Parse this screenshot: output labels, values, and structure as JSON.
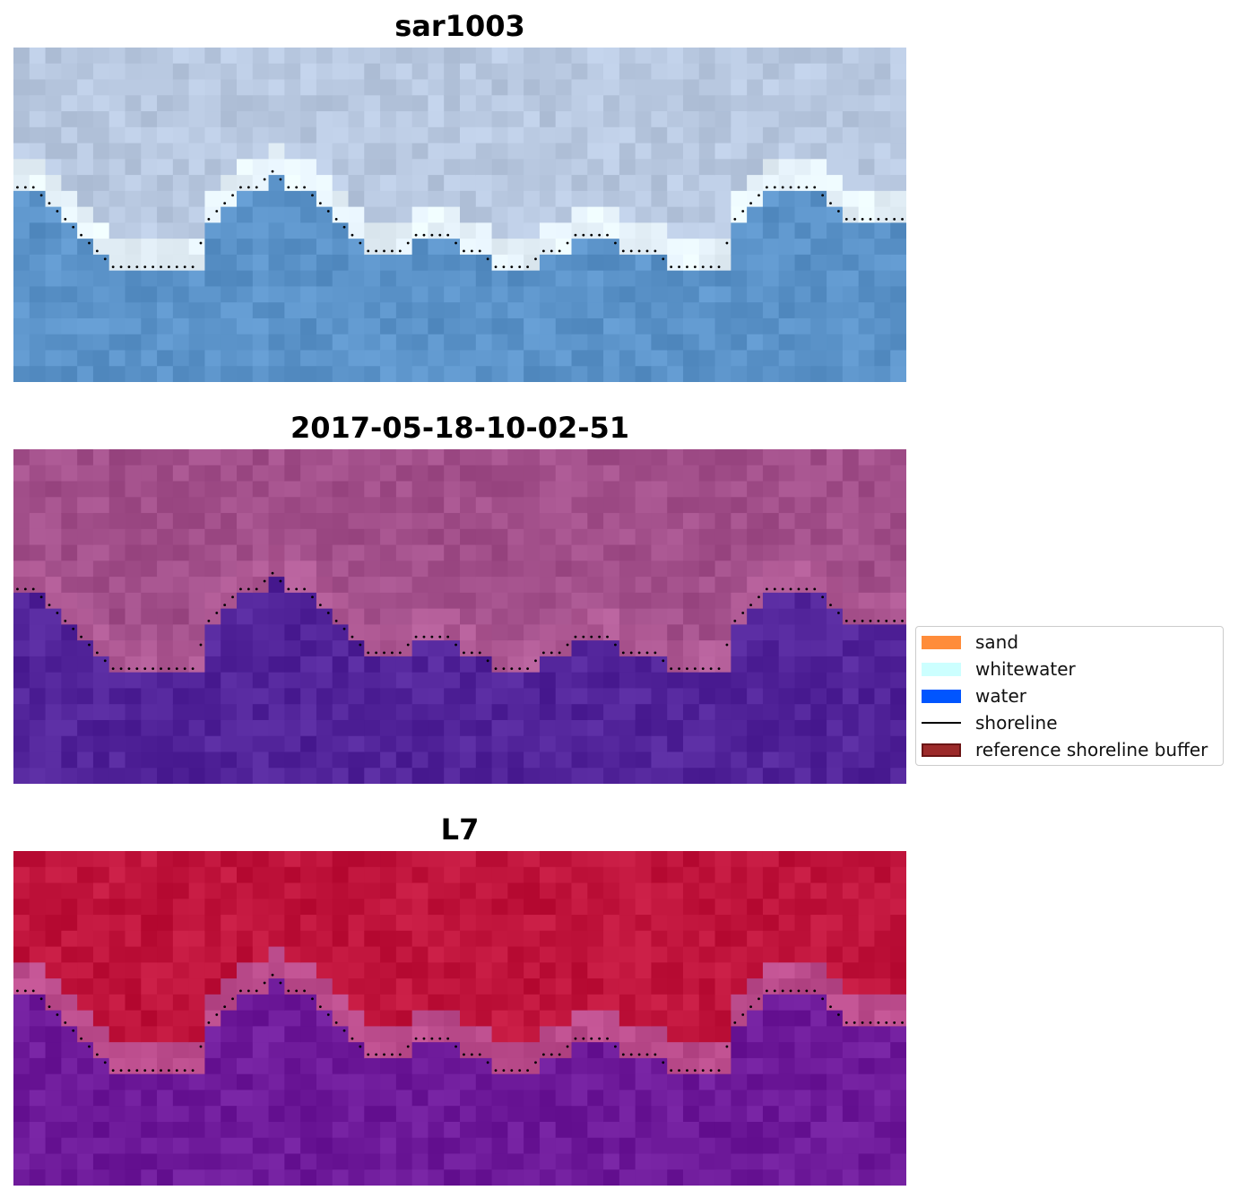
{
  "panels": [
    {
      "title": "sar1003"
    },
    {
      "title": "2017-05-18-10-02-51"
    },
    {
      "title": "L7"
    }
  ],
  "legend": {
    "items": [
      {
        "label": "sand",
        "type": "patch",
        "color": "#ff8c3a"
      },
      {
        "label": "whitewater",
        "type": "patch",
        "color": "#ccffff"
      },
      {
        "label": "water",
        "type": "patch",
        "color": "#0055ff"
      },
      {
        "label": "shoreline",
        "type": "line",
        "color": "#000000"
      },
      {
        "label": "reference shoreline buffer",
        "type": "patch",
        "color": "#9c2a2a",
        "edge": "#6b1515"
      }
    ]
  },
  "chart_data": {
    "type": "heatmap",
    "grid_on": false,
    "legend_placement": "center-right",
    "panels": [
      {
        "title": "sar1003",
        "colors": {
          "land": "#b8c8e0",
          "boundary": "#e6f2fa",
          "water": "#5b93c9"
        }
      },
      {
        "title": "2017-05-18-10-02-51",
        "colors": {
          "land": "#a24f8a",
          "boundary": "#b05a95",
          "water": "#52249a"
        }
      },
      {
        "title": "L7",
        "colors": {
          "land": "#c0143c",
          "boundary": "#bb4c8c",
          "water": "#6e1a9a"
        }
      }
    ],
    "image_size": {
      "columns": 56,
      "rows": 21
    },
    "shoreline_rows": [
      8,
      8,
      9,
      10,
      11,
      12,
      13,
      13,
      13,
      13,
      13,
      13,
      10,
      9,
      8,
      8,
      7,
      8,
      8,
      9,
      10,
      11,
      12,
      12,
      12,
      11,
      11,
      11,
      12,
      12,
      13,
      13,
      13,
      12,
      12,
      11,
      11,
      11,
      12,
      12,
      12,
      13,
      13,
      13,
      13,
      10,
      9,
      8,
      8,
      8,
      8,
      9,
      10,
      10,
      10,
      10
    ],
    "legend": [
      "sand",
      "whitewater",
      "water",
      "shoreline",
      "reference shoreline buffer"
    ]
  }
}
